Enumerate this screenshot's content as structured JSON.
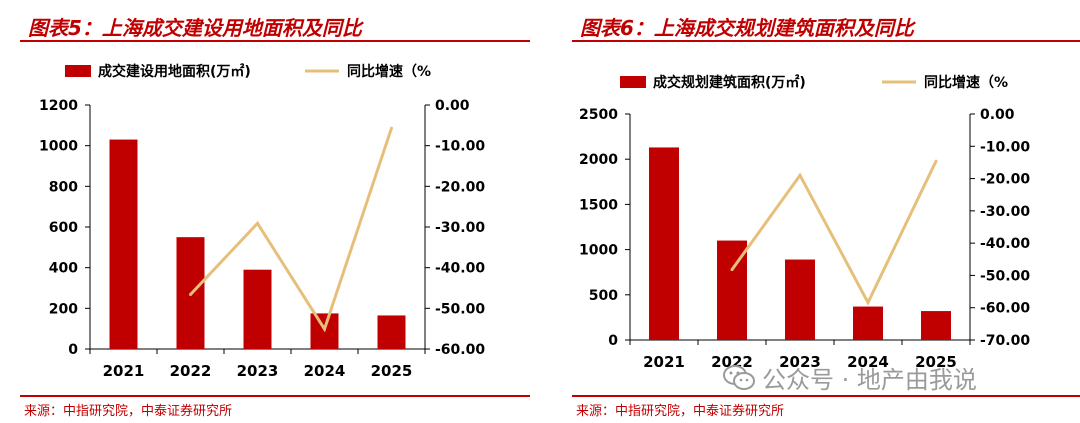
{
  "colors": {
    "accent": "#c00000",
    "bar": "#c00000",
    "line": "#e6c07b",
    "text": "#000000"
  },
  "charts": [
    {
      "title": "图表5：上海成交建设用地面积及同比",
      "source": "来源：中指研究院，中泰证券研究所",
      "chart_data": {
        "type": "bar",
        "categories": [
          "2021",
          "2022",
          "2023",
          "2024",
          "2025"
        ],
        "series": [
          {
            "name": "成交建设用地面积(万㎡)",
            "type": "bar",
            "axis": "left",
            "values": [
              1030,
              550,
              390,
              175,
              165
            ]
          },
          {
            "name": "同比增速（%",
            "type": "line",
            "axis": "right",
            "values": [
              null,
              -46.6,
              -29.1,
              -55.1,
              -5.7
            ]
          }
        ],
        "y_left": {
          "lim": [
            0,
            1200
          ],
          "ticks": [
            "0",
            "200",
            "400",
            "600",
            "800",
            "1000",
            "1200"
          ]
        },
        "y_right": {
          "lim": [
            -60,
            0
          ],
          "ticks": [
            "-60.00",
            "-50.00",
            "-40.00",
            "-30.00",
            "-20.00",
            "-10.00",
            "0.00"
          ]
        },
        "legend_position": "top",
        "grid": false
      }
    },
    {
      "title": "图表6：上海成交规划建筑面积及同比",
      "source": "来源：中指研究院，中泰证券研究所",
      "chart_data": {
        "type": "bar",
        "categories": [
          "2021",
          "2022",
          "2023",
          "2024",
          "2025"
        ],
        "series": [
          {
            "name": "成交规划建筑面积(万㎡)",
            "type": "bar",
            "axis": "left",
            "values": [
              2130,
              1100,
              890,
              370,
              320
            ]
          },
          {
            "name": "同比增速（%",
            "type": "line",
            "axis": "right",
            "values": [
              null,
              -48.2,
              -19.0,
              -58.4,
              -14.6
            ]
          }
        ],
        "y_left": {
          "lim": [
            0,
            2500
          ],
          "ticks": [
            "0",
            "500",
            "1000",
            "1500",
            "2000",
            "2500"
          ]
        },
        "y_right": {
          "lim": [
            -70,
            0
          ],
          "ticks": [
            "-70.00",
            "-60.00",
            "-50.00",
            "-40.00",
            "-30.00",
            "-20.00",
            "-10.00",
            "0.00"
          ]
        },
        "legend_position": "top",
        "grid": false
      }
    }
  ],
  "watermark": {
    "text": "公众号 · 地产由我说",
    "icon": "wechat-icon"
  }
}
